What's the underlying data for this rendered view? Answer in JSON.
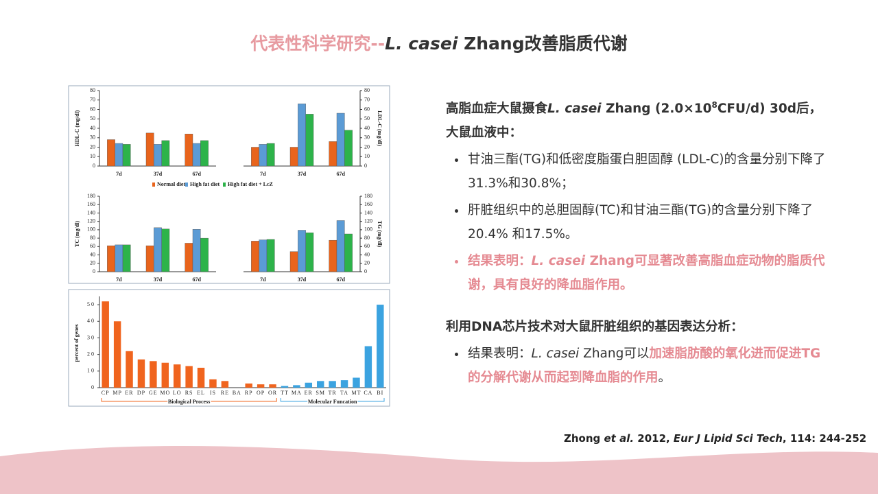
{
  "title": {
    "lead": "代表性科学研究--",
    "species": "L. casei",
    "rest": " Zhang改善脂质代谢"
  },
  "figure1": {
    "categories": [
      "7d",
      "37d",
      "67d"
    ],
    "series": [
      {
        "name": "Normal diet",
        "color": "#e8641c"
      },
      {
        "name": "High fat diet",
        "color": "#5b9bd5"
      },
      {
        "name": "High fat diet + LcZ",
        "color": "#2db34a"
      }
    ],
    "panels": [
      {
        "ylabel": "HDL-C (mg/dl)",
        "ylim": [
          0,
          80
        ],
        "yticks": [
          0,
          10,
          20,
          30,
          40,
          50,
          60,
          70,
          80
        ],
        "values": [
          [
            28,
            35,
            34
          ],
          [
            24,
            23,
            24
          ],
          [
            23,
            27,
            27
          ]
        ]
      },
      {
        "ylabel": "LDL-C (mg/dl)",
        "ylim": [
          0,
          80
        ],
        "yticks": [
          0,
          10,
          20,
          30,
          40,
          50,
          60,
          70,
          80
        ],
        "values": [
          [
            20,
            20,
            26
          ],
          [
            23,
            66,
            56
          ],
          [
            24,
            55,
            38
          ]
        ]
      },
      {
        "ylabel": "TC (mg/dl)",
        "ylim": [
          0,
          180
        ],
        "yticks": [
          0,
          20,
          40,
          60,
          80,
          100,
          120,
          140,
          160,
          180
        ],
        "values": [
          [
            62,
            62,
            68
          ],
          [
            64,
            105,
            101
          ],
          [
            64,
            102,
            80
          ]
        ]
      },
      {
        "ylabel": "TG (mg/dl)",
        "ylim": [
          0,
          180
        ],
        "yticks": [
          0,
          20,
          40,
          60,
          80,
          100,
          120,
          140,
          160,
          180
        ],
        "values": [
          [
            73,
            48,
            75
          ],
          [
            76,
            99,
            122
          ],
          [
            77,
            93,
            90
          ]
        ]
      }
    ]
  },
  "figure2": {
    "ylabel": "percent of genes",
    "ylim": [
      0,
      55
    ],
    "yticks": [
      0,
      10,
      20,
      30,
      40,
      50
    ],
    "categories": [
      "CP",
      "MP",
      "ER",
      "DP",
      "GE",
      "MO",
      "LO",
      "RS",
      "EL",
      "IS",
      "RE",
      "BA",
      "RP",
      "OP",
      "OR",
      "TT",
      "MA",
      "ER",
      "SM",
      "TR",
      "TA",
      "MT",
      "CA",
      "BI"
    ],
    "series": [
      {
        "name": "Biological Process",
        "color": "#f0641e",
        "values": [
          52,
          40,
          22,
          17,
          16,
          15,
          14,
          13,
          12,
          5,
          4,
          0,
          2.5,
          2,
          2,
          null,
          null,
          null,
          null,
          null,
          null,
          null,
          null,
          null
        ]
      },
      {
        "name": "Molecular Funcation",
        "color": "#3ba3e0",
        "values": [
          null,
          null,
          null,
          null,
          null,
          null,
          null,
          null,
          null,
          null,
          null,
          null,
          null,
          null,
          null,
          1,
          1.5,
          3,
          4,
          4,
          4.5,
          6,
          25,
          50
        ]
      }
    ]
  },
  "text": {
    "intro": {
      "a": "高脂血症大鼠摄食",
      "species": "L. casei",
      "b": " Zhang (2.0×10",
      "sup": "8",
      "c": "CFU/d) 30d后，大鼠血液中："
    },
    "bullets": [
      "甘油三酯(TG)和低密度脂蛋白胆固醇 (LDL-C)的含量分别下降了31.3%和30.8%；",
      "肝脏组织中的总胆固醇(TC)和甘油三酯(TG)的含量分别下降了20.4% 和17.5%。"
    ],
    "conclusion": {
      "a": "结果表明：",
      "species": "L. casei",
      "b": " Zhang可显著改善高脂血症动物的脂质代谢，具有良好的降血脂作用。"
    },
    "heading2": "利用DNA芯片技术对大鼠肝脏组织的基因表达分析：",
    "conclusion2": {
      "a": "结果表明：",
      "species": "L. casei",
      "b": " Zhang可以",
      "highlight": "加速脂肪酸的氧化进而促进TG的分解代谢从而起到降血脂的作用",
      "c": "。"
    }
  },
  "citation": {
    "a": "Zhong ",
    "etal": "et al.",
    "b": " 2012, ",
    "journal": "Eur J Lipid Sci Tech",
    "c": ", 114: 244-252"
  }
}
